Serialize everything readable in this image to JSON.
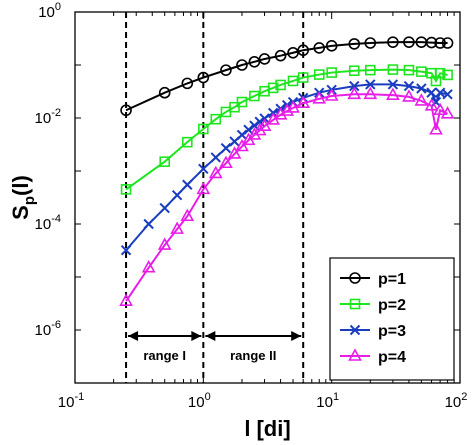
{
  "chart_data": {
    "type": "line",
    "x_scale": "log",
    "y_scale": "log",
    "xlim": [
      0.1,
      100
    ],
    "ylim": [
      1e-07,
      1
    ],
    "xlabel_main": "l",
    "xlabel_unit": "[di]",
    "ylabel_main": "S",
    "ylabel_sub": "p",
    "ylabel_arg": "(l)",
    "x_ticks": [
      {
        "base": "10",
        "exp": "-1",
        "value": 0.1
      },
      {
        "base": "10",
        "exp": "0",
        "value": 1
      },
      {
        "base": "10",
        "exp": "1",
        "value": 10
      },
      {
        "base": "10",
        "exp": "2",
        "value": 100
      }
    ],
    "y_ticks": [
      {
        "base": "10",
        "exp": "-6",
        "value": 1e-06
      },
      {
        "base": "10",
        "exp": "-4",
        "value": 0.0001
      },
      {
        "base": "10",
        "exp": "-2",
        "value": 0.01
      },
      {
        "base": "10",
        "exp": "0",
        "value": 1
      }
    ],
    "vlines": [
      0.25,
      1.0,
      6.0
    ],
    "ranges": [
      {
        "label": "range I",
        "from": 0.25,
        "to": 1.0
      },
      {
        "label": "range II",
        "from": 1.0,
        "to": 6.0
      }
    ],
    "legend_position": "bottom-right",
    "series": [
      {
        "name": "p=1",
        "color": "#000000",
        "marker": "circle",
        "x": [
          0.25,
          0.5,
          0.75,
          1.0,
          1.5,
          2.0,
          2.5,
          3.0,
          4.0,
          5.0,
          6.0,
          8.0,
          10,
          15,
          20,
          30,
          40,
          50,
          60,
          70,
          80
        ],
        "y": [
          0.014,
          0.03,
          0.045,
          0.058,
          0.08,
          0.1,
          0.115,
          0.13,
          0.15,
          0.17,
          0.19,
          0.21,
          0.23,
          0.25,
          0.26,
          0.27,
          0.27,
          0.27,
          0.265,
          0.26,
          0.26
        ]
      },
      {
        "name": "p=2",
        "color": "#1ee61e",
        "marker": "square",
        "x": [
          0.25,
          0.5,
          0.75,
          1.0,
          1.25,
          1.5,
          1.75,
          2.0,
          2.5,
          3.0,
          3.5,
          4.0,
          5.0,
          6.0,
          8.0,
          10,
          15,
          20,
          30,
          40,
          50,
          60,
          65,
          70,
          80
        ],
        "y": [
          0.00045,
          0.0015,
          0.0035,
          0.0062,
          0.0095,
          0.013,
          0.016,
          0.02,
          0.026,
          0.032,
          0.037,
          0.042,
          0.05,
          0.058,
          0.066,
          0.072,
          0.078,
          0.08,
          0.082,
          0.08,
          0.075,
          0.07,
          0.05,
          0.07,
          0.065
        ]
      },
      {
        "name": "p=3",
        "color": "#1a3dbf",
        "marker": "x",
        "x": [
          0.25,
          0.375,
          0.5,
          0.625,
          0.75,
          1.0,
          1.25,
          1.5,
          1.75,
          2.0,
          2.25,
          2.5,
          2.75,
          3.0,
          3.5,
          4.0,
          4.5,
          5.0,
          6.0,
          8.0,
          10,
          15,
          20,
          30,
          40,
          50,
          60,
          65,
          70,
          80
        ],
        "y": [
          3.2e-05,
          0.0001,
          0.0002,
          0.00035,
          0.00055,
          0.0011,
          0.0018,
          0.0027,
          0.0036,
          0.0048,
          0.006,
          0.0072,
          0.0085,
          0.0098,
          0.0125,
          0.015,
          0.0175,
          0.02,
          0.024,
          0.03,
          0.034,
          0.04,
          0.043,
          0.043,
          0.04,
          0.036,
          0.03,
          0.02,
          0.03,
          0.028
        ]
      },
      {
        "name": "p=4",
        "color": "#e81ee8",
        "marker": "triangle",
        "x": [
          0.25,
          0.375,
          0.5,
          0.625,
          0.75,
          1.0,
          1.25,
          1.5,
          1.75,
          2.0,
          2.25,
          2.5,
          2.75,
          3.0,
          3.5,
          4.0,
          4.5,
          5.0,
          6.0,
          8.0,
          10,
          15,
          20,
          30,
          40,
          50,
          60,
          65,
          70,
          80
        ],
        "y": [
          3.5e-06,
          1.5e-05,
          4e-05,
          8e-05,
          0.00014,
          0.00045,
          0.0009,
          0.0014,
          0.0021,
          0.0029,
          0.0038,
          0.0048,
          0.0058,
          0.007,
          0.0092,
          0.0115,
          0.0135,
          0.0155,
          0.019,
          0.023,
          0.026,
          0.028,
          0.028,
          0.027,
          0.025,
          0.021,
          0.017,
          0.006,
          0.014,
          0.012
        ]
      }
    ]
  }
}
